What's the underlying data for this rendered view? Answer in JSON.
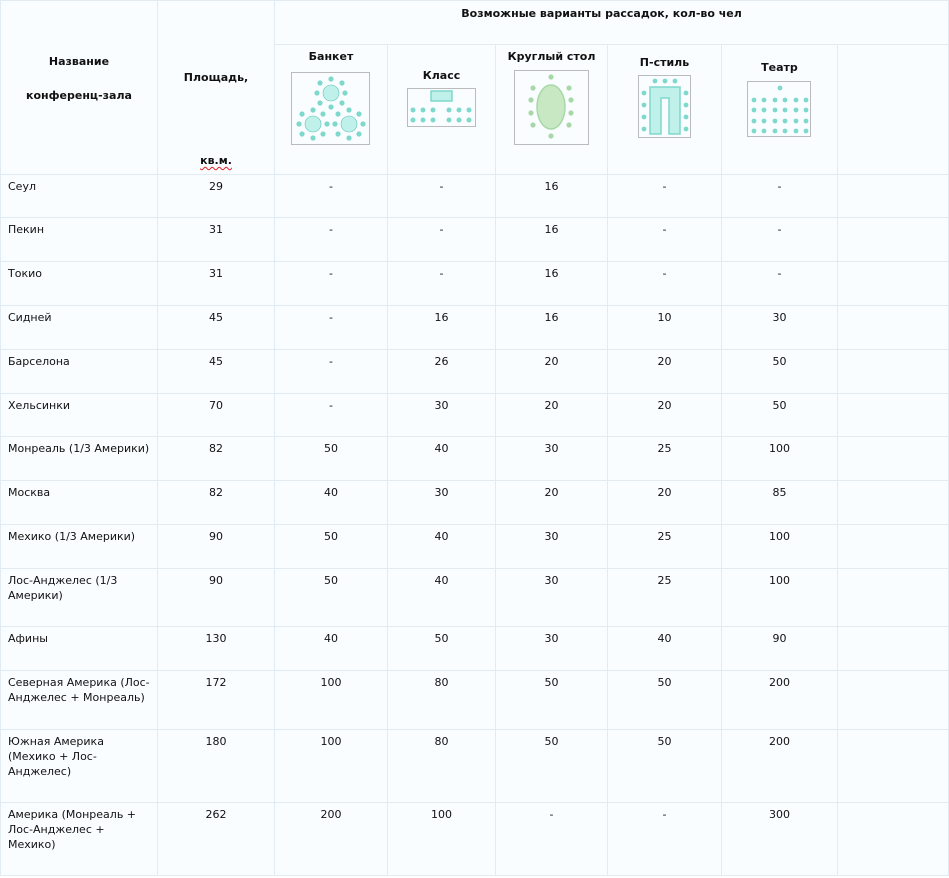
{
  "header": {
    "name_line1": "Название",
    "name_line2": "конференц-зала",
    "area_prefix": "Площадь, ",
    "area_unit": "кв.м.",
    "group_title": "Возможные варианты рассадок, кол-во чел",
    "layouts": [
      {
        "label": "Банкет",
        "icon": "banquet-layout-icon"
      },
      {
        "label": "Класс",
        "icon": "classroom-layout-icon"
      },
      {
        "label": "Круглый стол",
        "icon": "round-table-layout-icon"
      },
      {
        "label": "П-стиль",
        "icon": "u-shape-layout-icon"
      },
      {
        "label": "Театр",
        "icon": "theater-layout-icon"
      }
    ]
  },
  "colors": {
    "teal": "#7fd8cc",
    "green": "#a8d8a8",
    "grid": "#e2eaf2"
  },
  "rows": [
    {
      "name": "Сеул",
      "area": "29",
      "banquet": "-",
      "class": "-",
      "round": "16",
      "u": "-",
      "theater": "-"
    },
    {
      "name": "Пекин",
      "area": "31",
      "banquet": "-",
      "class": "-",
      "round": "16",
      "u": "-",
      "theater": "-"
    },
    {
      "name": "Токио",
      "area": "31",
      "banquet": "-",
      "class": "-",
      "round": "16",
      "u": "-",
      "theater": "-"
    },
    {
      "name": "Сидней",
      "area": "45",
      "banquet": "-",
      "class": "16",
      "round": "16",
      "u": "10",
      "theater": "30"
    },
    {
      "name": "Барселона",
      "area": "45",
      "banquet": "-",
      "class": "26",
      "round": "20",
      "u": "20",
      "theater": "50"
    },
    {
      "name": "Хельсинки",
      "area": "70",
      "banquet": "-",
      "class": "30",
      "round": "20",
      "u": "20",
      "theater": "50"
    },
    {
      "name": "Монреаль (1/3 Америки)",
      "area": "82",
      "banquet": "50",
      "class": "40",
      "round": "30",
      "u": "25",
      "theater": "100"
    },
    {
      "name": "Москва",
      "area": "82",
      "banquet": "40",
      "class": "30",
      "round": "20",
      "u": "20",
      "theater": "85"
    },
    {
      "name": "Мехико (1/3 Америки)",
      "area": "90",
      "banquet": "50",
      "class": "40",
      "round": "30",
      "u": "25",
      "theater": "100"
    },
    {
      "name": "Лос-Анджелес (1/3 Америки)",
      "area": "90",
      "banquet": "50",
      "class": "40",
      "round": "30",
      "u": "25",
      "theater": "100"
    },
    {
      "name": "Афины",
      "area": "130",
      "banquet": "40",
      "class": "50",
      "round": "30",
      "u": "40",
      "theater": "90"
    },
    {
      "name": "Северная Америка (Лос-Анджелес + Монреаль)",
      "area": "172",
      "banquet": "100",
      "class": "80",
      "round": "50",
      "u": "50",
      "theater": "200"
    },
    {
      "name": "Южная Америка (Мехико + Лос-Анджелес)",
      "area": "180",
      "banquet": "100",
      "class": "80",
      "round": "50",
      "u": "50",
      "theater": "200"
    },
    {
      "name": "Америка (Монреаль + Лос-Анджелес + Мехико)",
      "area": "262",
      "banquet": "200",
      "class": "100",
      "round": "-",
      "u": "-",
      "theater": "300"
    }
  ]
}
